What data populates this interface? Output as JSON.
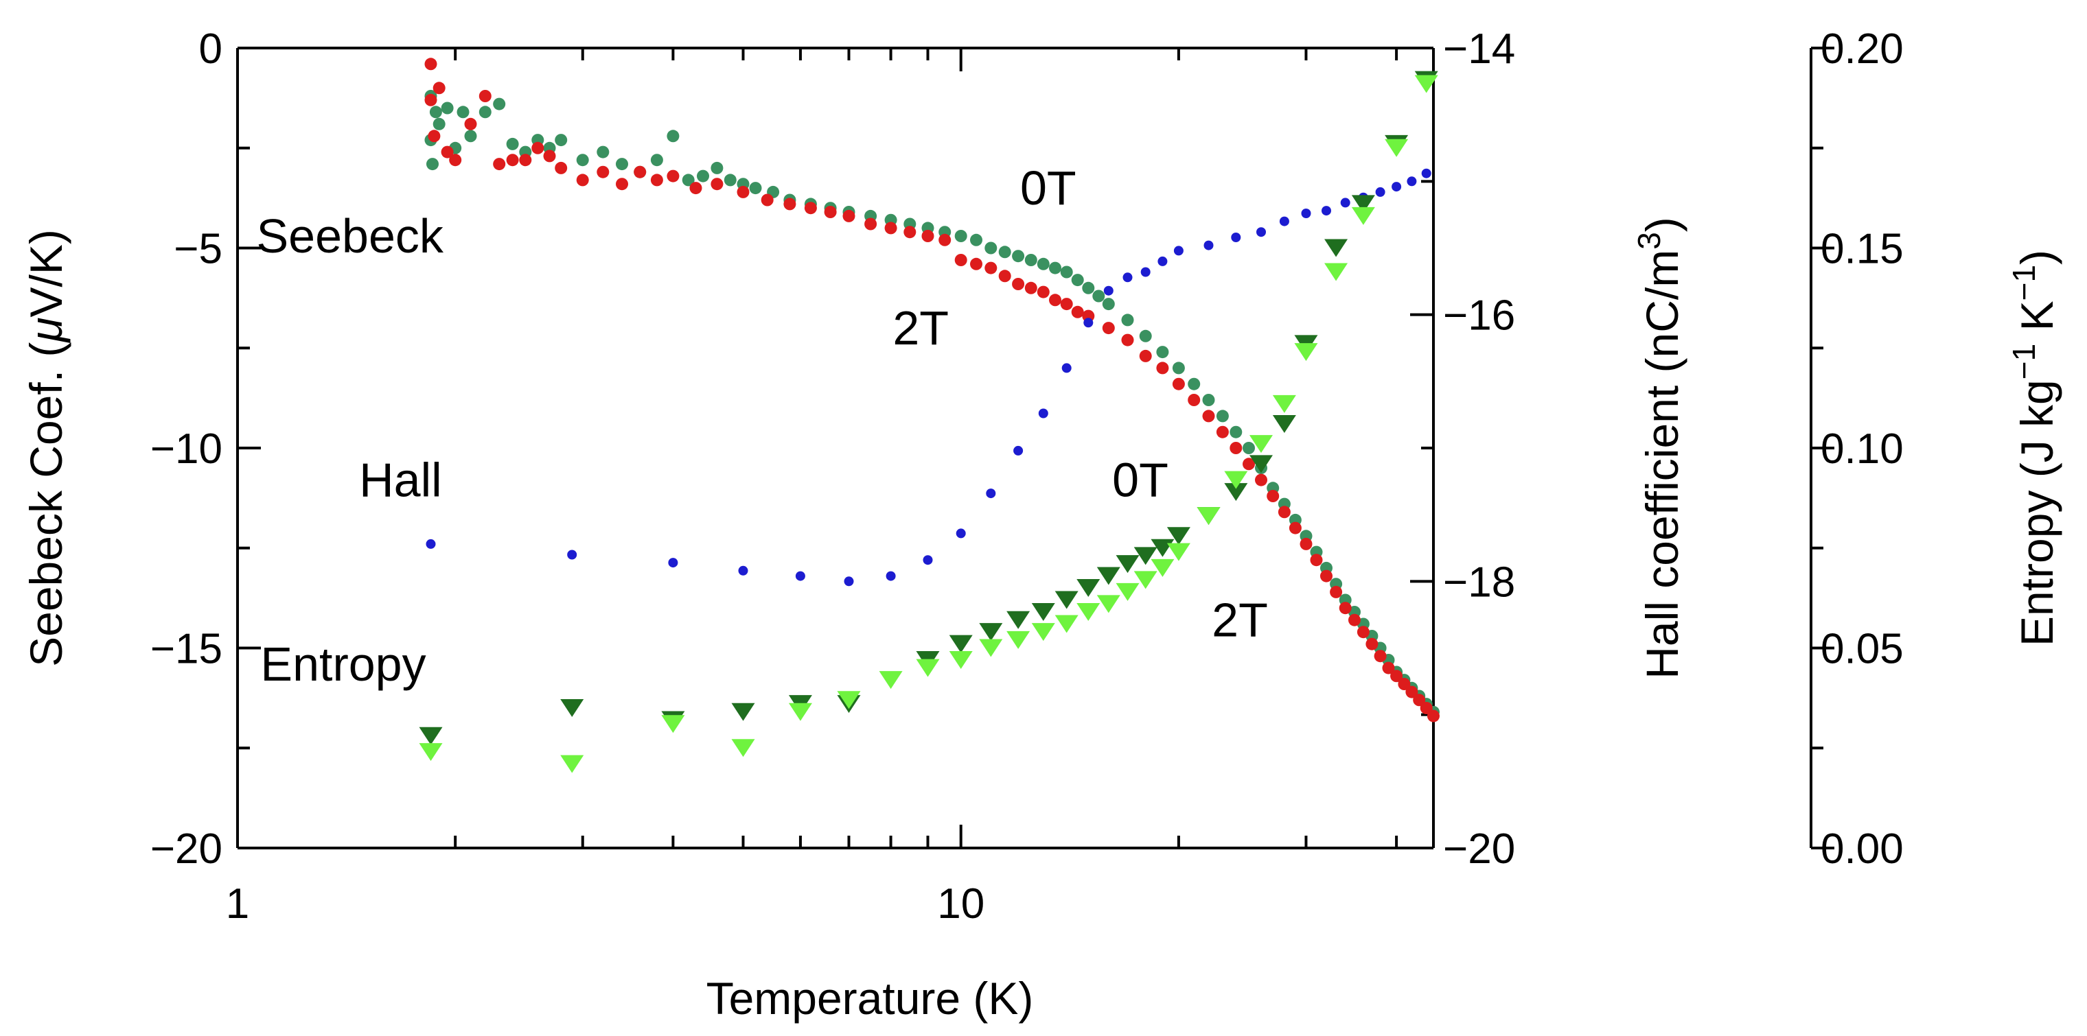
{
  "chart_data": {
    "type": "scatter",
    "title": "",
    "xlabel": "Temperature (K)",
    "xscale": "log",
    "xlim": [
      1,
      45
    ],
    "x_ticks": [
      {
        "value": 1,
        "label": "1"
      },
      {
        "value": 10,
        "label": "10"
      }
    ],
    "left_axis": {
      "label_parts": [
        "Seebeck Coef. (",
        "μ",
        "V/K)"
      ],
      "ylim": [
        -20,
        0
      ],
      "ticks": [
        {
          "value": 0,
          "label": "0"
        },
        {
          "value": -5,
          "label": "−5"
        },
        {
          "value": -10,
          "label": "−10"
        },
        {
          "value": -15,
          "label": "−15"
        },
        {
          "value": -20,
          "label": "−20"
        }
      ]
    },
    "right_axis_1": {
      "label_parts": [
        "Hall coefficient (nC/m",
        "3",
        ")"
      ],
      "ylim": [
        -20,
        -14
      ],
      "ticks": [
        {
          "value": -14,
          "label": "−14"
        },
        {
          "value": -16,
          "label": "−16"
        },
        {
          "value": -18,
          "label": "−18"
        },
        {
          "value": -20,
          "label": "−20"
        }
      ]
    },
    "right_axis_2": {
      "label_parts": [
        "Entropy (J kg",
        "−1",
        " K",
        "−1",
        ")"
      ],
      "ylim": [
        0.0,
        0.2
      ],
      "ticks": [
        {
          "value": 0.2,
          "label": "0.20"
        },
        {
          "value": 0.15,
          "label": "0.15"
        },
        {
          "value": 0.1,
          "label": "0.10"
        },
        {
          "value": 0.05,
          "label": "0.05"
        },
        {
          "value": 0.0,
          "label": "0.00"
        }
      ]
    },
    "annotations": [
      {
        "text": "Seebeck",
        "x": 1.43,
        "y": -4.7
      },
      {
        "text": "0T",
        "x": 13.2,
        "y": -3.5
      },
      {
        "text": "2T",
        "x": 8.8,
        "y": -7.0
      },
      {
        "text": "Hall",
        "x": 1.68,
        "y": -10.8
      },
      {
        "text": "0T",
        "x": 17.7,
        "y": -10.8
      },
      {
        "text": "2T",
        "x": 24.3,
        "y": -14.3
      },
      {
        "text": "Entropy",
        "x": 1.4,
        "y": -15.4
      }
    ],
    "series": [
      {
        "name": "Seebeck 0T",
        "axis": "left",
        "marker": "circle",
        "color": "#3a9160",
        "x": [
          1.85,
          1.85,
          1.86,
          1.88,
          1.9,
          1.95,
          2.0,
          2.05,
          2.1,
          2.2,
          2.3,
          2.4,
          2.5,
          2.6,
          2.7,
          2.8,
          3.0,
          3.2,
          3.4,
          3.6,
          3.8,
          4.0,
          4.2,
          4.4,
          4.6,
          4.8,
          5.0,
          5.2,
          5.5,
          5.8,
          6.2,
          6.6,
          7.0,
          7.5,
          8.0,
          8.5,
          9.0,
          9.5,
          10.0,
          10.5,
          11.0,
          11.5,
          12.0,
          12.5,
          13.0,
          13.5,
          14.0,
          14.5,
          15.0,
          15.5,
          16.0,
          17.0,
          18.0,
          19.0,
          20.0,
          21.0,
          22.0,
          23.0,
          24.0,
          25.0,
          26.0,
          27.0,
          28.0,
          29.0,
          30.0,
          31.0,
          32.0,
          33.0,
          34.0,
          35.0,
          36.0,
          37.0,
          38.0,
          39.0,
          40.0,
          41.0,
          42.0,
          43.0,
          44.0,
          45.0
        ],
        "y": [
          -1.2,
          -2.3,
          -2.9,
          -1.6,
          -1.9,
          -1.5,
          -2.5,
          -1.6,
          -2.2,
          -1.6,
          -1.4,
          -2.4,
          -2.6,
          -2.3,
          -2.5,
          -2.3,
          -2.8,
          -2.6,
          -2.9,
          -3.1,
          -2.8,
          -2.2,
          -3.3,
          -3.2,
          -3.0,
          -3.3,
          -3.4,
          -3.5,
          -3.6,
          -3.8,
          -3.9,
          -4.0,
          -4.1,
          -4.2,
          -4.3,
          -4.4,
          -4.5,
          -4.6,
          -4.7,
          -4.8,
          -5.0,
          -5.1,
          -5.2,
          -5.3,
          -5.4,
          -5.5,
          -5.6,
          -5.8,
          -6.0,
          -6.2,
          -6.4,
          -6.8,
          -7.2,
          -7.6,
          -8.0,
          -8.4,
          -8.8,
          -9.2,
          -9.6,
          -10.0,
          -10.5,
          -11.0,
          -11.4,
          -11.8,
          -12.2,
          -12.6,
          -13.0,
          -13.4,
          -13.8,
          -14.1,
          -14.4,
          -14.7,
          -15.0,
          -15.3,
          -15.6,
          -15.8,
          -16.0,
          -16.2,
          -16.4,
          -16.6
        ]
      },
      {
        "name": "Seebeck 2T",
        "axis": "left",
        "marker": "circle",
        "color": "#dd1c1c",
        "x": [
          1.85,
          1.85,
          1.87,
          1.9,
          1.95,
          2.0,
          2.1,
          2.2,
          2.3,
          2.4,
          2.5,
          2.6,
          2.7,
          2.8,
          3.0,
          3.2,
          3.4,
          3.6,
          3.8,
          4.0,
          4.3,
          4.6,
          5.0,
          5.4,
          5.8,
          6.2,
          6.6,
          7.0,
          7.5,
          8.0,
          8.5,
          9.0,
          9.5,
          10.0,
          10.5,
          11.0,
          11.5,
          12.0,
          12.5,
          13.0,
          13.5,
          14.0,
          14.5,
          15.0,
          16.0,
          17.0,
          18.0,
          19.0,
          20.0,
          21.0,
          22.0,
          23.0,
          24.0,
          25.0,
          26.0,
          27.0,
          28.0,
          29.0,
          30.0,
          31.0,
          32.0,
          33.0,
          34.0,
          35.0,
          36.0,
          37.0,
          38.0,
          39.0,
          40.0,
          41.0,
          42.0,
          43.0,
          44.0,
          45.0
        ],
        "y": [
          -0.4,
          -1.3,
          -2.2,
          -1.0,
          -2.6,
          -2.8,
          -1.9,
          -1.2,
          -2.9,
          -2.8,
          -2.8,
          -2.5,
          -2.7,
          -3.0,
          -3.3,
          -3.1,
          -3.4,
          -3.1,
          -3.3,
          -3.2,
          -3.5,
          -3.4,
          -3.6,
          -3.8,
          -3.9,
          -4.0,
          -4.1,
          -4.2,
          -4.4,
          -4.5,
          -4.6,
          -4.7,
          -4.8,
          -5.3,
          -5.4,
          -5.5,
          -5.7,
          -5.9,
          -6.0,
          -6.1,
          -6.3,
          -6.4,
          -6.6,
          -6.7,
          -7.0,
          -7.3,
          -7.7,
          -8.0,
          -8.4,
          -8.8,
          -9.2,
          -9.6,
          -10.0,
          -10.4,
          -10.8,
          -11.2,
          -11.6,
          -12.0,
          -12.4,
          -12.8,
          -13.2,
          -13.6,
          -14.0,
          -14.3,
          -14.6,
          -14.9,
          -15.2,
          -15.5,
          -15.7,
          -15.9,
          -16.1,
          -16.3,
          -16.5,
          -16.7
        ]
      },
      {
        "name": "Hall 0T",
        "axis": "right1",
        "marker": "circle",
        "color": "#1c1cd0",
        "x": [
          1.85,
          2.9,
          4.0,
          5.0,
          6.0,
          7.0,
          8.0,
          9.0,
          10.0,
          11.0,
          12.0,
          13.0,
          14.0,
          15.0,
          16.0,
          17.0,
          18.0,
          19.0,
          20.0,
          22.0,
          24.0,
          26.0,
          28.0,
          30.0,
          32.0,
          34.0,
          36.0,
          38.0,
          40.0,
          42.0,
          44.0
        ],
        "y": [
          -17.72,
          -17.8,
          -17.86,
          -17.92,
          -17.96,
          -18.0,
          -17.96,
          -17.84,
          -17.64,
          -17.34,
          -17.02,
          -16.74,
          -16.4,
          -16.06,
          -15.82,
          -15.72,
          -15.68,
          -15.6,
          -15.52,
          -15.48,
          -15.42,
          -15.38,
          -15.3,
          -15.24,
          -15.22,
          -15.16,
          -15.12,
          -15.08,
          -15.04,
          -15.0,
          -14.94
        ]
      },
      {
        "name": "Entropy 0T",
        "axis": "right2",
        "marker": "triangle-down",
        "color": "#1f6e1f",
        "x": [
          1.85,
          2.9,
          4.0,
          5.0,
          6.0,
          7.0,
          9.0,
          10.0,
          11.0,
          12.0,
          13.0,
          14.0,
          15.0,
          16.0,
          17.0,
          18.0,
          19.0,
          20.0,
          22.0,
          24.0,
          26.0,
          28.0,
          30.0,
          33.0,
          36.0,
          40.0,
          44.0
        ],
        "y": [
          0.028,
          0.035,
          0.032,
          0.034,
          0.036,
          0.036,
          0.047,
          0.051,
          0.054,
          0.057,
          0.059,
          0.062,
          0.065,
          0.068,
          0.071,
          0.073,
          0.075,
          0.078,
          0.083,
          0.089,
          0.096,
          0.106,
          0.126,
          0.15,
          0.161,
          0.176,
          0.192
        ]
      },
      {
        "name": "Entropy 2T",
        "axis": "right2",
        "marker": "triangle-down",
        "color": "#6ff33f",
        "x": [
          1.85,
          2.9,
          4.0,
          5.0,
          6.0,
          7.0,
          8.0,
          9.0,
          10.0,
          11.0,
          12.0,
          13.0,
          14.0,
          15.0,
          16.0,
          17.0,
          18.0,
          19.0,
          20.0,
          22.0,
          24.0,
          26.0,
          28.0,
          30.0,
          33.0,
          36.0,
          40.0,
          44.0
        ],
        "y": [
          0.024,
          0.021,
          0.031,
          0.025,
          0.034,
          0.037,
          0.042,
          0.045,
          0.047,
          0.05,
          0.052,
          0.054,
          0.056,
          0.059,
          0.061,
          0.064,
          0.067,
          0.07,
          0.074,
          0.083,
          0.092,
          0.101,
          0.111,
          0.124,
          0.144,
          0.158,
          0.175,
          0.191
        ]
      }
    ]
  }
}
